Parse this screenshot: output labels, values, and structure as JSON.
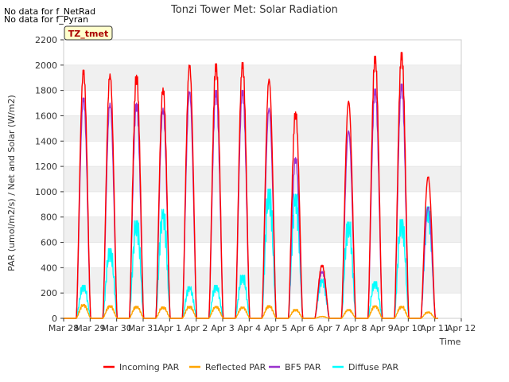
{
  "chart_data": {
    "type": "line",
    "title": "Tonzi Tower Met: Solar Radiation",
    "xlabel": "Time",
    "ylabel": "PAR (umol/m2/s) / Net and Solar (W/m2)",
    "ylim": [
      0,
      2200
    ],
    "xlim": [
      0,
      15
    ],
    "yticks": [
      0,
      200,
      400,
      600,
      800,
      1000,
      1200,
      1400,
      1600,
      1800,
      2000,
      2200
    ],
    "xtick_labels": [
      "Mar 28",
      "Mar 29",
      "Mar 30",
      "Mar 31",
      "Apr 1",
      "Apr 2",
      "Apr 3",
      "Apr 4",
      "Apr 5",
      "Apr 6",
      "Apr 7",
      "Apr 8",
      "Apr 9",
      "Apr 10",
      "Apr 11",
      "Apr 12"
    ],
    "grid_bands": true,
    "annotations": [
      "No data for f_NetRad",
      "No data for f_Pyran"
    ],
    "site_label": "TZ_tmet",
    "legend_position": "bottom-center",
    "day_centers": [
      0.75,
      1.75,
      2.75,
      3.75,
      4.75,
      5.75,
      6.75,
      7.75,
      8.75,
      9.75,
      10.75,
      11.75,
      12.75,
      13.75
    ],
    "series": [
      {
        "name": "Incoming PAR",
        "color": "#ff0000",
        "values": [
          1960,
          1930,
          1920,
          1820,
          2000,
          2010,
          2020,
          1890,
          1630,
          420,
          1715,
          2070,
          2100,
          1120
        ]
      },
      {
        "name": "Reflected PAR",
        "color": "#ffa500",
        "values": [
          110,
          100,
          95,
          90,
          95,
          95,
          90,
          100,
          70,
          15,
          70,
          100,
          95,
          50
        ]
      },
      {
        "name": "BF5 PAR",
        "color": "#9a32cd",
        "values": [
          1740,
          1700,
          1700,
          1660,
          1790,
          1800,
          1800,
          1660,
          1270,
          370,
          1480,
          1810,
          1850,
          880
        ]
      },
      {
        "name": "Diffuse PAR",
        "color": "#00ffff",
        "values": [
          260,
          550,
          770,
          860,
          250,
          260,
          340,
          1020,
          980,
          310,
          760,
          290,
          780,
          880
        ]
      }
    ]
  }
}
